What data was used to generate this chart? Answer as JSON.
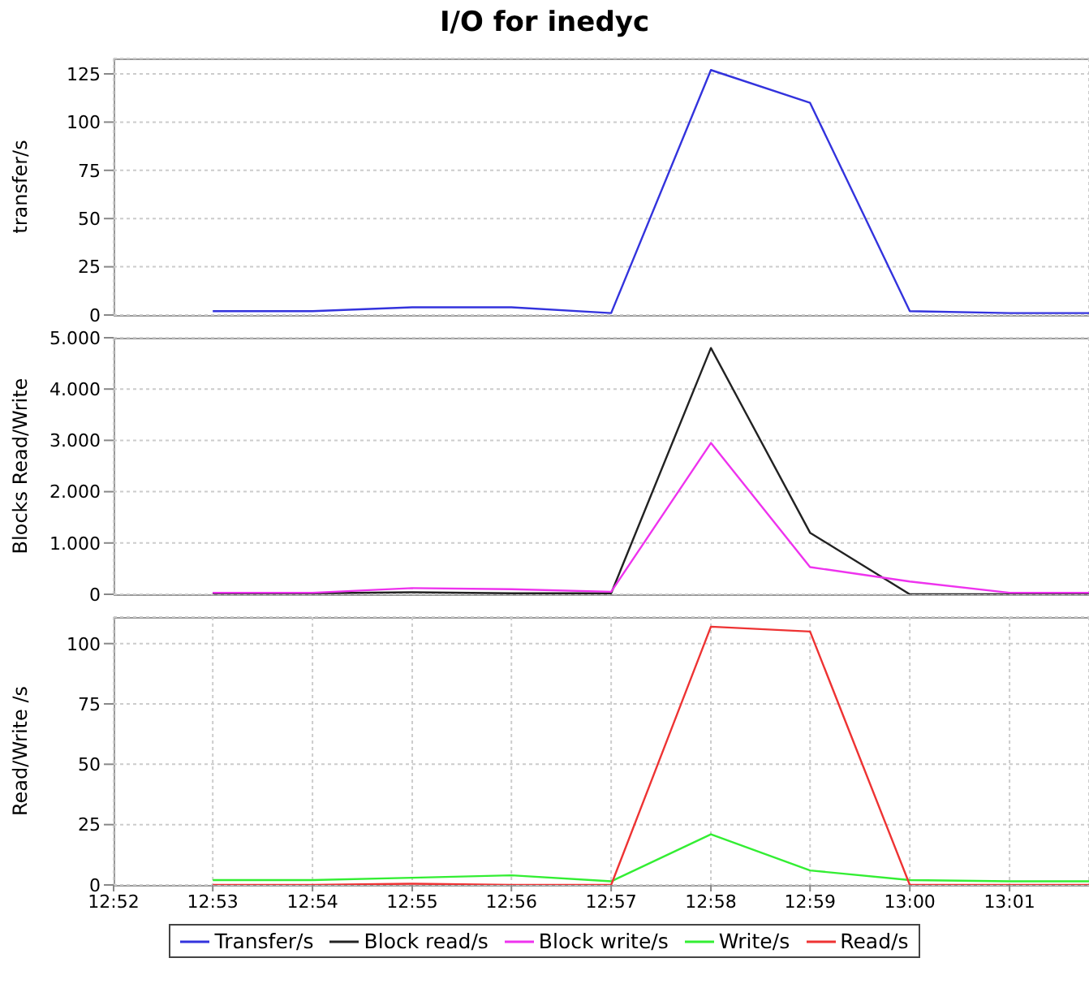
{
  "chart_data": [
    {
      "type": "line",
      "title": "I/O for inedyc",
      "ylabel": "transfer/s",
      "x": [
        12.8833,
        12.9,
        12.9167,
        12.9333,
        12.95,
        12.9667,
        12.9833,
        13,
        13.0167,
        13.03
      ],
      "xlim": [
        12.8667,
        13.03
      ],
      "ylim": [
        0,
        133
      ],
      "yticks": [
        0,
        25,
        50,
        75,
        100,
        125
      ],
      "tick_labels": "y",
      "grid": true,
      "marker": "none",
      "legend": "bottom",
      "series": [
        {
          "name": "Transfer/s",
          "color": "#3333dd",
          "values": [
            2,
            2,
            4,
            4,
            1,
            127,
            110,
            2,
            1,
            1
          ]
        }
      ]
    },
    {
      "type": "line",
      "ylabel": "Blocks Read/Write",
      "x": [
        12.8833,
        12.9,
        12.9167,
        12.9333,
        12.95,
        12.9667,
        12.9833,
        13,
        13.0167,
        13.03
      ],
      "xlim": [
        12.8667,
        13.03
      ],
      "ylim": [
        0,
        5000
      ],
      "yticks": [
        0,
        {
          "value": 1000,
          "label": "1.000"
        },
        {
          "value": 2000,
          "label": "2.000"
        },
        {
          "value": 3000,
          "label": "3.000"
        },
        {
          "value": 4000,
          "label": "4.000"
        },
        {
          "value": 5000,
          "label": "5.000"
        }
      ],
      "tick_labels": "y",
      "grid": true,
      "marker": "none",
      "legend": "bottom",
      "series": [
        {
          "name": "Block read/s",
          "color": "#222222",
          "values": [
            20,
            20,
            40,
            20,
            20,
            4800,
            1200,
            0,
            0,
            0
          ]
        },
        {
          "name": "Block write/s",
          "color": "#ee33ee",
          "values": [
            30,
            30,
            120,
            100,
            50,
            2950,
            530,
            250,
            30,
            30
          ]
        }
      ]
    },
    {
      "type": "line",
      "ylabel": "Read/Write /s",
      "x": [
        12.8833,
        12.9,
        12.9167,
        12.9333,
        12.95,
        12.9667,
        12.9833,
        13,
        13.0167,
        13.03
      ],
      "xlim": [
        12.8667,
        13.03
      ],
      "xticks": [
        {
          "value": 12.8667,
          "label": "12:52"
        },
        {
          "value": 12.8833,
          "label": "12:53"
        },
        {
          "value": 12.9,
          "label": "12:54"
        },
        {
          "value": 12.9167,
          "label": "12:55"
        },
        {
          "value": 12.9333,
          "label": "12:56"
        },
        {
          "value": 12.95,
          "label": "12:57"
        },
        {
          "value": 12.9667,
          "label": "12:58"
        },
        {
          "value": 12.9833,
          "label": "12:59"
        },
        {
          "value": 13,
          "label": "13:00"
        },
        {
          "value": 13.0167,
          "label": "13:01"
        }
      ],
      "ylim": [
        0,
        111
      ],
      "yticks": [
        0,
        25,
        50,
        75,
        100
      ],
      "grid": true,
      "marker": "none",
      "legend": "bottom",
      "series": [
        {
          "name": "Write/s",
          "color": "#33ee33",
          "values": [
            2,
            2,
            3,
            4,
            1.5,
            21,
            6,
            2,
            1.5,
            1.5
          ]
        },
        {
          "name": "Read/s",
          "color": "#ee3333",
          "values": [
            0,
            0,
            0.5,
            0,
            0,
            107,
            105,
            0,
            0,
            0
          ]
        }
      ]
    }
  ]
}
